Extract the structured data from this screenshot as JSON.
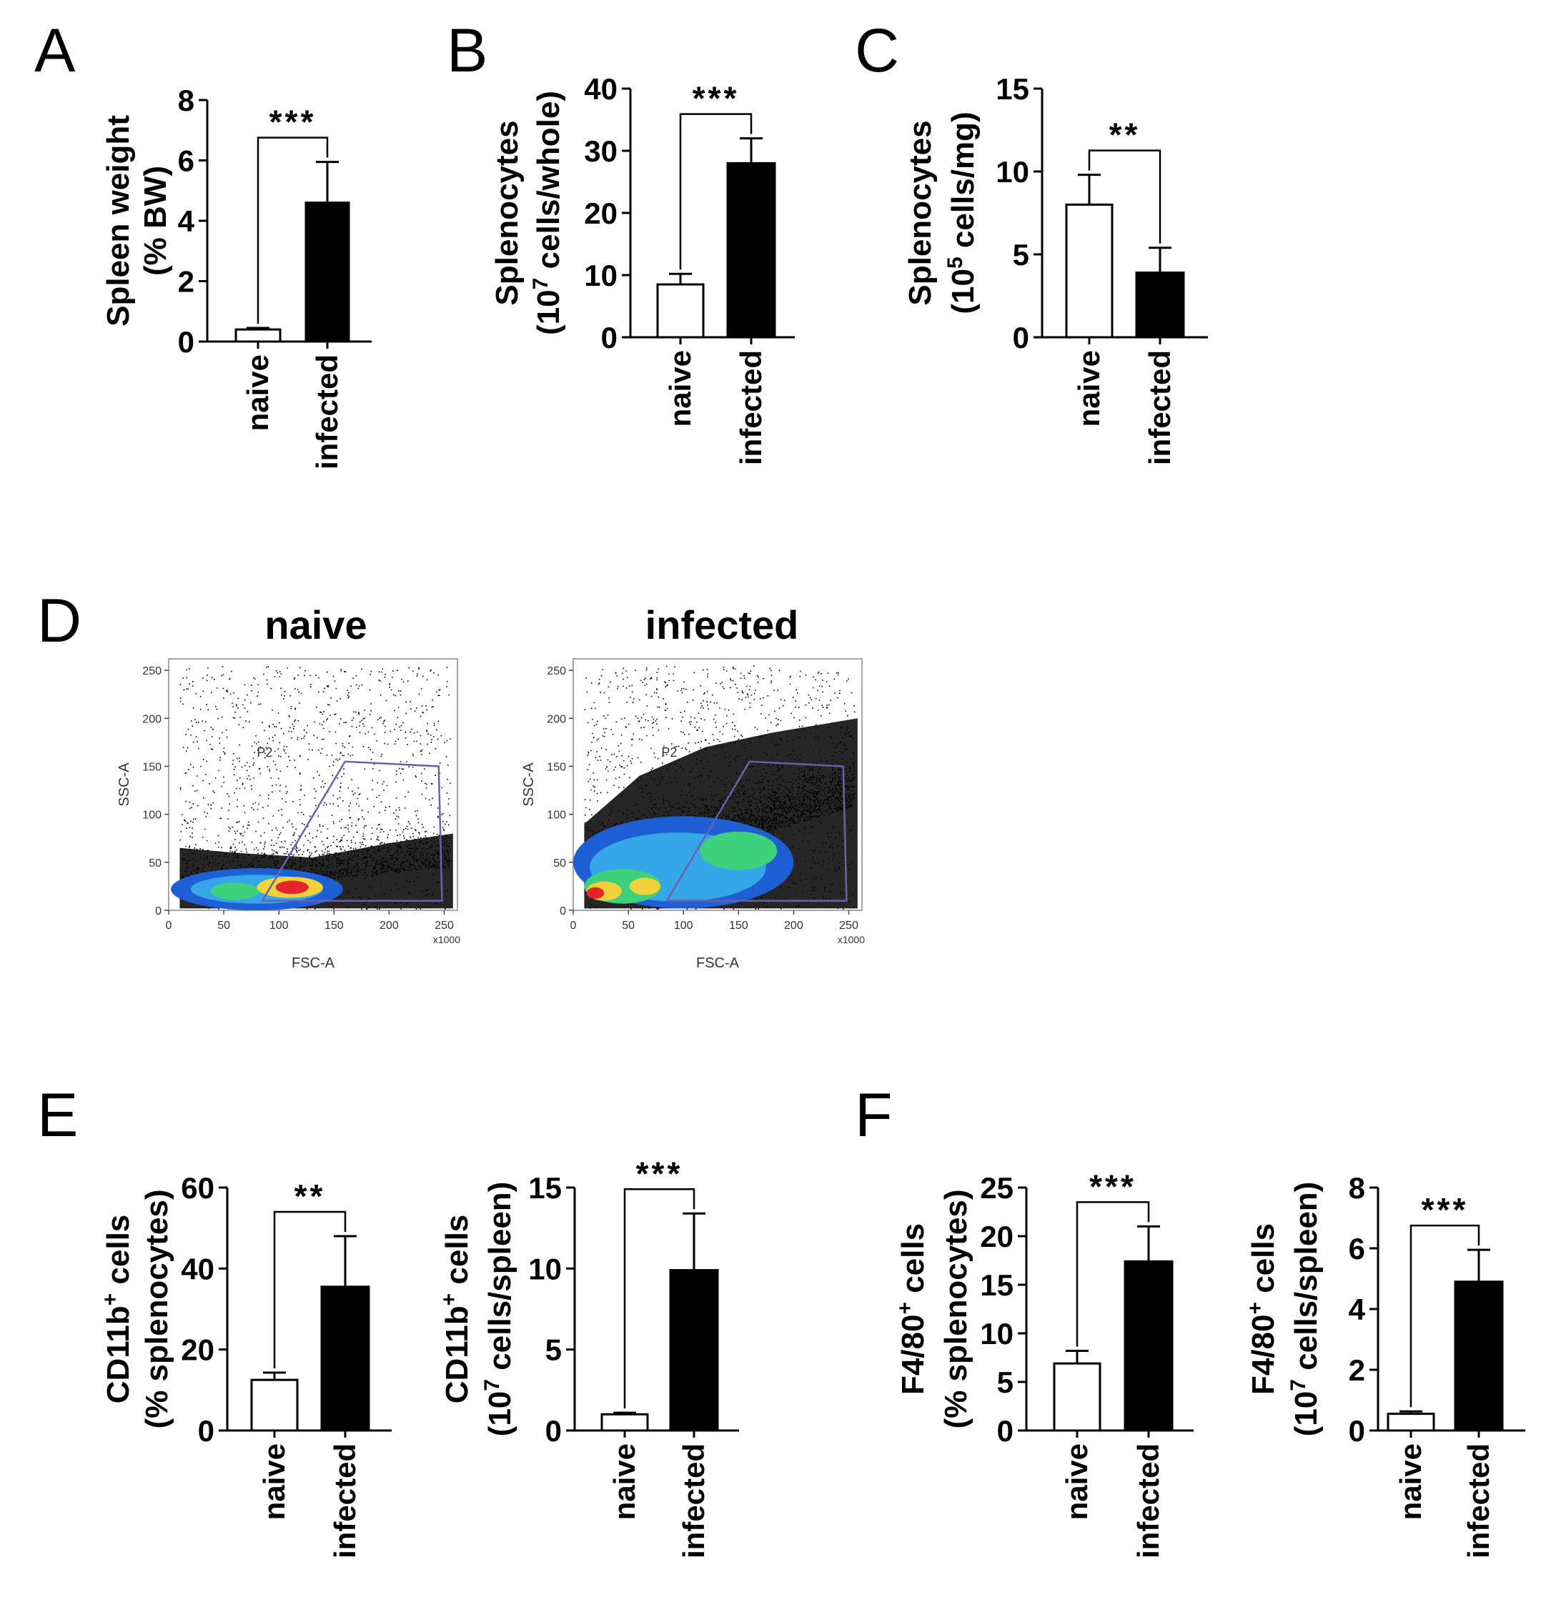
{
  "panels": {
    "A": "A",
    "B": "B",
    "C": "C",
    "D": "D",
    "E": "E",
    "F": "F"
  },
  "colors": {
    "naive_fill": "#ffffff",
    "infected_fill": "#000000",
    "axis": "#000000",
    "gate": "#6b5fb0"
  },
  "chart_data": [
    {
      "id": "A",
      "type": "bar",
      "categories": [
        "naive",
        "infected"
      ],
      "values": [
        0.4,
        4.6
      ],
      "errors": [
        0.05,
        1.35
      ],
      "ylabel_line1": "Spleen weight",
      "ylabel_line2": "(% BW)",
      "yticks": [
        "0",
        "2",
        "4",
        "6",
        "8"
      ],
      "ylim": [
        0,
        8
      ],
      "significance": "***"
    },
    {
      "id": "B",
      "type": "bar",
      "categories": [
        "naive",
        "infected"
      ],
      "values": [
        8.5,
        28
      ],
      "errors": [
        1.7,
        4.0
      ],
      "ylabel_line1": "Splenocytes",
      "ylabel_line2": "(10^7 cells/whole)",
      "ylabel_pre": "(10",
      "ylabel_sup": "7",
      "ylabel_post": " cells/whole)",
      "yticks": [
        "0",
        "10",
        "20",
        "30",
        "40"
      ],
      "ylim": [
        0,
        40
      ],
      "significance": "***"
    },
    {
      "id": "C",
      "type": "bar",
      "categories": [
        "naive",
        "infected"
      ],
      "values": [
        8.0,
        3.9
      ],
      "errors": [
        1.8,
        1.5
      ],
      "ylabel_line1": "Splenocytes",
      "ylabel_line2": "(10^5 cells/mg)",
      "ylabel_pre": "(10",
      "ylabel_sup": "5",
      "ylabel_post": " cells/mg)",
      "yticks": [
        "0",
        "5",
        "10",
        "15"
      ],
      "ylim": [
        0,
        15
      ],
      "significance": "**"
    },
    {
      "id": "D1",
      "type": "scatter",
      "title": "naive",
      "xlabel": "FSC-A",
      "ylabel": "SSC-A",
      "xticks": [
        "0",
        "50",
        "100",
        "150",
        "200",
        "250"
      ],
      "xunit": "x1000",
      "yticks": [
        "0",
        "50",
        "100",
        "150",
        "200",
        "250"
      ],
      "xlim": [
        0,
        262
      ],
      "ylim": [
        0,
        262
      ],
      "gate_label": "P2",
      "gate": [
        [
          85,
          10
        ],
        [
          160,
          155
        ],
        [
          245,
          150
        ],
        [
          248,
          10
        ]
      ],
      "note": "density of events concentrated at low SSC (<50), hot spots near FSC 60 and 110"
    },
    {
      "id": "D2",
      "type": "scatter",
      "title": "infected",
      "xlabel": "FSC-A",
      "ylabel": "SSC-A",
      "xticks": [
        "0",
        "50",
        "100",
        "150",
        "200",
        "250"
      ],
      "xunit": "x1000",
      "yticks": [
        "0",
        "50",
        "100",
        "150",
        "200",
        "250"
      ],
      "xlim": [
        0,
        262
      ],
      "ylim": [
        0,
        262
      ],
      "gate_label": "P2",
      "gate": [
        [
          85,
          10
        ],
        [
          160,
          155
        ],
        [
          245,
          150
        ],
        [
          248,
          10
        ]
      ],
      "note": "broad dense population up to SSC ~100, hot spots near FSC 20 and 60"
    },
    {
      "id": "E1",
      "type": "bar",
      "categories": [
        "naive",
        "infected"
      ],
      "values": [
        12.5,
        35.5
      ],
      "errors": [
        1.8,
        12.5
      ],
      "ylabel_pre1": "CD11b",
      "ylabel_sup1": "+",
      "ylabel_post1": " cells",
      "ylabel_line2": "(% splenocytes)",
      "yticks": [
        "0",
        "20",
        "40",
        "60"
      ],
      "ylim": [
        0,
        60
      ],
      "significance": "**"
    },
    {
      "id": "E2",
      "type": "bar",
      "categories": [
        "naive",
        "infected"
      ],
      "values": [
        1.0,
        9.9
      ],
      "errors": [
        0.1,
        3.5
      ],
      "ylabel_pre1": "CD11b",
      "ylabel_sup1": "+",
      "ylabel_post1": " cells",
      "ylabel_pre": "(10",
      "ylabel_sup": "7",
      "ylabel_post": " cells/spleen)",
      "yticks": [
        "0",
        "5",
        "10",
        "15"
      ],
      "ylim": [
        0,
        15
      ],
      "significance": "***"
    },
    {
      "id": "F1",
      "type": "bar",
      "categories": [
        "naive",
        "infected"
      ],
      "values": [
        6.9,
        17.4
      ],
      "errors": [
        1.3,
        3.6
      ],
      "ylabel_pre1": "F4/80",
      "ylabel_sup1": "+",
      "ylabel_post1": " cells",
      "ylabel_line2": "(% splenocytes)",
      "yticks": [
        "0",
        "5",
        "10",
        "15",
        "20",
        "25"
      ],
      "ylim": [
        0,
        25
      ],
      "significance": "***"
    },
    {
      "id": "F2",
      "type": "bar",
      "categories": [
        "naive",
        "infected"
      ],
      "values": [
        0.55,
        4.9
      ],
      "errors": [
        0.08,
        1.05
      ],
      "ylabel_pre1": "F4/80",
      "ylabel_sup1": "+",
      "ylabel_post1": " cells",
      "ylabel_pre": "(10",
      "ylabel_sup": "7",
      "ylabel_post": " cells/spleen)",
      "yticks": [
        "0",
        "2",
        "4",
        "6",
        "8"
      ],
      "ylim": [
        0,
        8
      ],
      "significance": "***"
    }
  ]
}
